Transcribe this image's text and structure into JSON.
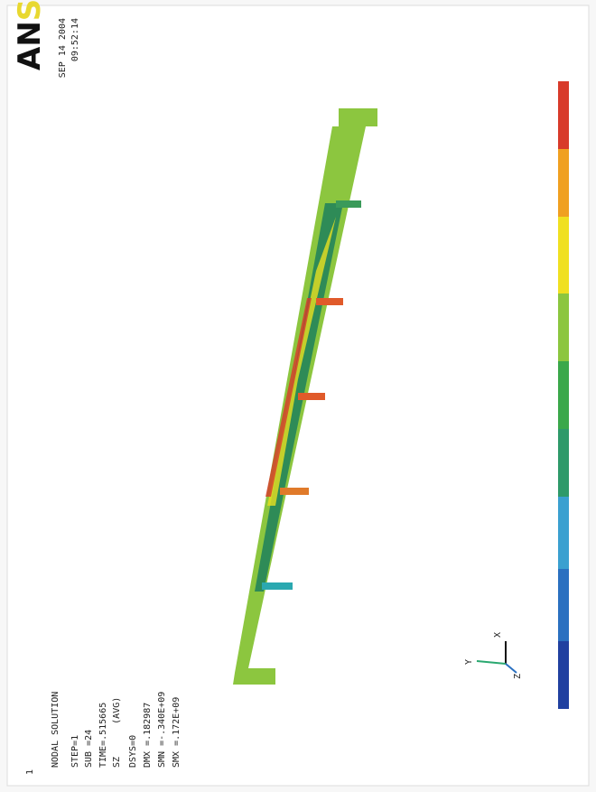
{
  "legend_text": {
    "title": "NODAL SOLUTION",
    "lines": [
      "STEP=1",
      "SUB =24",
      "TIME=.515665",
      "SZ      (AVG)",
      "DSYS=0",
      "DMX =.182987",
      "SMN =-.340E+09",
      "SMX =.172E+09"
    ]
  },
  "logo": {
    "black": "AN",
    "colored": "SYS"
  },
  "timestamp": {
    "date": "SEP 14 2004",
    "time": "09:52:14"
  },
  "triad": {
    "x": "X",
    "y": "Y",
    "z": "Z"
  },
  "window_number": "1"
}
